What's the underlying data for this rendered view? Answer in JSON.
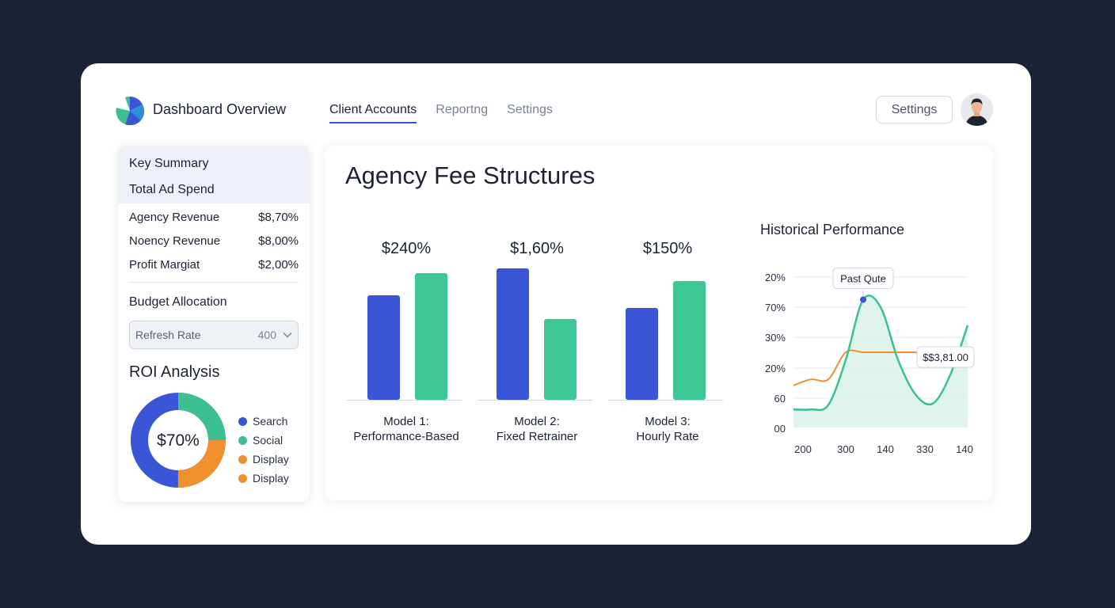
{
  "header": {
    "app_title": "Dashboard Overview",
    "tabs": [
      {
        "label": "Client Accounts",
        "active": true
      },
      {
        "label": "Reportng",
        "active": false
      },
      {
        "label": "Settings",
        "active": false
      }
    ],
    "settings_button": "Settings"
  },
  "sidebar": {
    "key_summary": "Key Summary",
    "total_ad_spend": "Total Ad Spend",
    "rows": [
      {
        "label": "Agency Revenue",
        "value": "$8,70%"
      },
      {
        "label": "Noency Revenue",
        "value": "$8,00%"
      },
      {
        "label": "Profit Margiat",
        "value": "$2,00%"
      }
    ],
    "budget_allocation": "Budget Allocation",
    "select": {
      "label": "Refresh Rate",
      "value": "400"
    },
    "roi_title": "ROI Analysis",
    "donut_center": "$70%",
    "legend": [
      {
        "label": "Search",
        "color": "#3a56d6"
      },
      {
        "label": "Social",
        "color": "#3dbf91"
      },
      {
        "label": "Display",
        "color": "#f0912e"
      },
      {
        "label": "Display",
        "color": "#f0912e"
      }
    ]
  },
  "main": {
    "title": "Agency Fee Structures",
    "models": [
      {
        "value_label": "$240%",
        "line1": "Model 1:",
        "line2": "Performance-Based",
        "blue": 0.66,
        "green": 0.8
      },
      {
        "value_label": "$1,60%",
        "line1": "Model 2:",
        "line2": "Fixed Retrainer",
        "blue": 0.83,
        "green": 0.51
      },
      {
        "value_label": "$150%",
        "line1": "Model 3:",
        "line2": "Hourly Rate",
        "blue": 0.58,
        "green": 0.75
      }
    ],
    "colors": {
      "blue": "#3a56d6",
      "green": "#3dc795"
    }
  },
  "chart_data": {
    "type": "line",
    "title": "Historical Performance",
    "x_ticks": [
      "200",
      "300",
      "140",
      "330",
      "140"
    ],
    "y_ticks": [
      "20%",
      "70%",
      "30%",
      "20%",
      "60",
      "00"
    ],
    "series": [
      {
        "color": "#3dbf91",
        "values": [
          0.12,
          0.12,
          0.15,
          0.45,
          0.85,
          0.8,
          0.45,
          0.22,
          0.16,
          0.35,
          0.68
        ]
      },
      {
        "color": "#f0912e",
        "values": [
          0.28,
          0.32,
          0.32,
          0.5,
          0.5,
          0.5,
          0.5,
          0.5,
          0.5,
          0.51,
          0.52
        ]
      }
    ],
    "annotations": [
      {
        "text": "Past Qute",
        "point_index": 4
      },
      {
        "text": "$$3,81.00",
        "point_index": 9
      }
    ],
    "grid": true
  }
}
